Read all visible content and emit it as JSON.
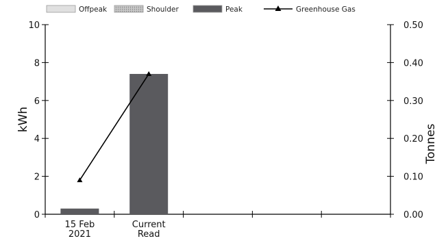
{
  "chart_data": {
    "type": "bar",
    "categories": [
      [
        "15 Feb",
        "2021"
      ],
      [
        "Current",
        "Read"
      ],
      [
        "",
        ""
      ],
      [
        "",
        ""
      ],
      [
        "",
        ""
      ]
    ],
    "legend": [
      {
        "label": "Offpeak",
        "kind": "swatch",
        "color": "#e0e0e0",
        "pattern": "none"
      },
      {
        "label": "Shoulder",
        "kind": "swatch",
        "color": "#b0b0b0",
        "pattern": "dots"
      },
      {
        "label": "Peak",
        "kind": "swatch",
        "color": "#5a5a5e",
        "pattern": "none"
      },
      {
        "label": "Greenhouse Gas",
        "kind": "line-marker",
        "color": "#000000",
        "pattern": "none"
      }
    ],
    "series": [
      {
        "name": "Offpeak",
        "axis": "left",
        "type": "bar",
        "values": [
          0,
          0,
          null,
          null,
          null
        ]
      },
      {
        "name": "Shoulder",
        "axis": "left",
        "type": "bar",
        "values": [
          0,
          0,
          null,
          null,
          null
        ]
      },
      {
        "name": "Peak",
        "axis": "left",
        "type": "bar",
        "values": [
          0.3,
          7.4,
          null,
          null,
          null
        ]
      },
      {
        "name": "Greenhouse Gas",
        "axis": "right",
        "type": "line",
        "values": [
          0.09,
          0.37,
          null,
          null,
          null
        ]
      }
    ],
    "ylabel": "kWh",
    "ylabel_right": "Tonnes",
    "ylim": [
      0,
      10
    ],
    "ylim_right": [
      0,
      0.5
    ],
    "yticks": [
      "0",
      "2",
      "4",
      "6",
      "8",
      "10"
    ],
    "yticks_right": [
      "0.00",
      "0.10",
      "0.20",
      "0.30",
      "0.40",
      "0.50"
    ],
    "grid": false,
    "legend_position": "top"
  }
}
